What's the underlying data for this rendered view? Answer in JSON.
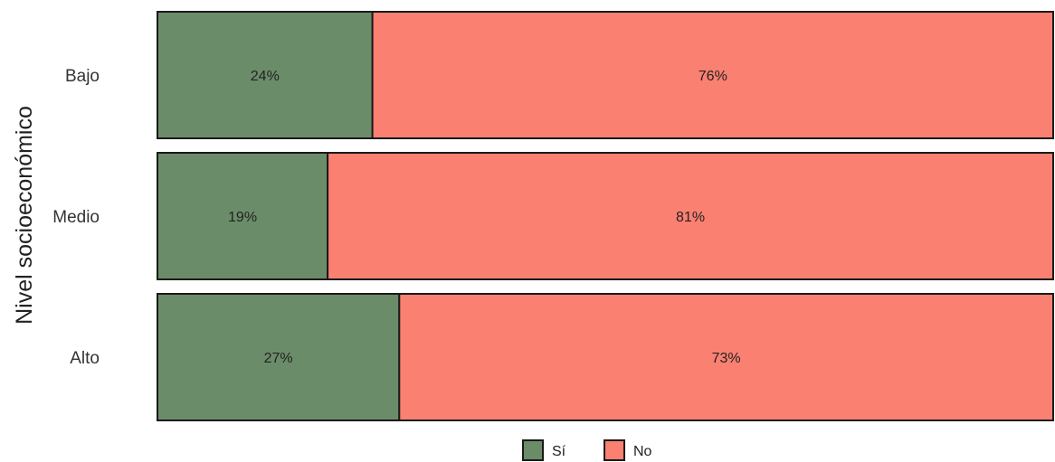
{
  "chart_data": {
    "type": "bar",
    "orientation": "horizontal",
    "stacked": true,
    "percent": true,
    "ylabel": "Nivel socioeconómico",
    "categories": [
      "Bajo",
      "Medio",
      "Alto"
    ],
    "series": [
      {
        "name": "Sí",
        "color": "#6b8c69",
        "values": [
          24,
          19,
          27
        ],
        "labels": [
          "24%",
          "19%",
          "27%"
        ]
      },
      {
        "name": "No",
        "color": "#fa8072",
        "values": [
          76,
          81,
          73
        ],
        "labels": [
          "76%",
          "81%",
          "73%"
        ]
      }
    ],
    "xlim": [
      0,
      100
    ],
    "grid": false,
    "legend_position": "bottom"
  }
}
